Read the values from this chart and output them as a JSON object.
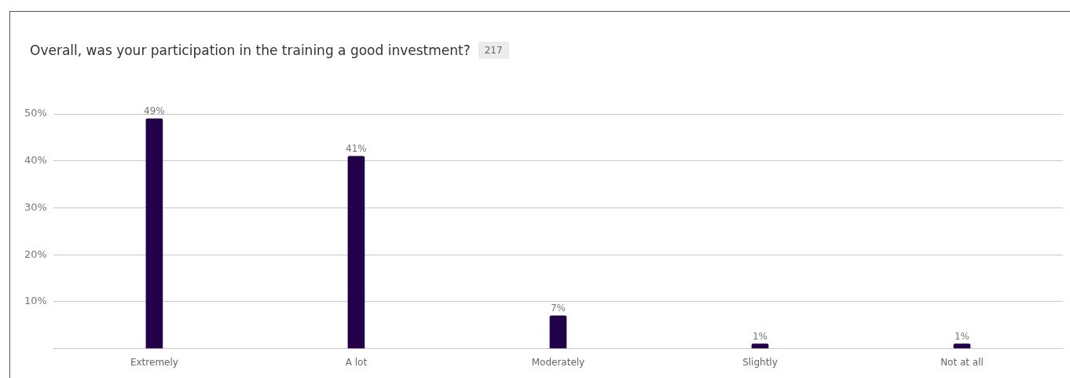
{
  "chart_data": {
    "type": "bar",
    "title": "Overall, was your participation in the training a good investment?",
    "annotations": [
      "217"
    ],
    "categories": [
      "Extremely",
      "A lot",
      "Moderately",
      "Slightly",
      "Not at all"
    ],
    "values": [
      49,
      41,
      7,
      1,
      1
    ],
    "value_labels": [
      "49%",
      "41%",
      "7%",
      "1%",
      "1%"
    ],
    "color": "#22004a",
    "ylim": [
      0,
      50
    ],
    "yticks": [
      {
        "value": 0,
        "label": null
      },
      {
        "value": 10,
        "label": "10%"
      },
      {
        "value": 20,
        "label": "20%"
      },
      {
        "value": 30,
        "label": "30%"
      },
      {
        "value": 40,
        "label": "40%"
      },
      {
        "value": 50,
        "label": "50%"
      }
    ],
    "grid": "y"
  }
}
